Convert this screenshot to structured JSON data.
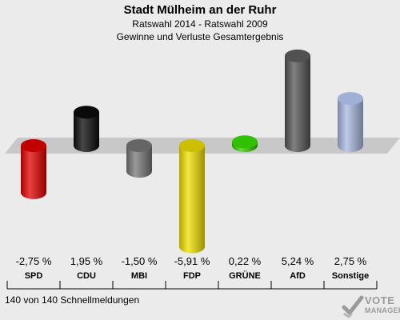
{
  "title": "Stadt Mülheim an der Ruhr",
  "subtitle_line1": "Ratswahl 2014 - Ratswahl 2009",
  "subtitle_line2": "Gewinne und Verluste Gesamtergebnis",
  "footer_note": "140 von 140 Schnellmeldungen",
  "logo": {
    "line1": "VOTE",
    "line2": "MANAGER",
    "icon": "vote-manager-logo-icon"
  },
  "colors": {
    "background": "#ebebeb",
    "baseline_band": "#c8c8c8",
    "SPD": "#e30000",
    "CDU": "#0a0a0a",
    "MBI": "#777777",
    "FDP": "#f0e000",
    "GRÜNE": "#33cc00",
    "AfD": "#555555",
    "Sonstige": "#a8b8e0"
  },
  "chart_data": {
    "type": "bar",
    "title": "Stadt Mülheim an der Ruhr",
    "categories": [
      "SPD",
      "CDU",
      "MBI",
      "FDP",
      "GRÜNE",
      "AfD",
      "Sonstige"
    ],
    "values": [
      -2.75,
      1.95,
      -1.5,
      -5.91,
      0.22,
      5.24,
      2.75
    ],
    "value_labels": [
      "-2,75 %",
      "1,95 %",
      "-1,50 %",
      "-5,91 %",
      "0,22 %",
      "5,24 %",
      "2,75 %"
    ],
    "xlabel": "",
    "ylabel": "",
    "grid": false,
    "legend": "none"
  }
}
